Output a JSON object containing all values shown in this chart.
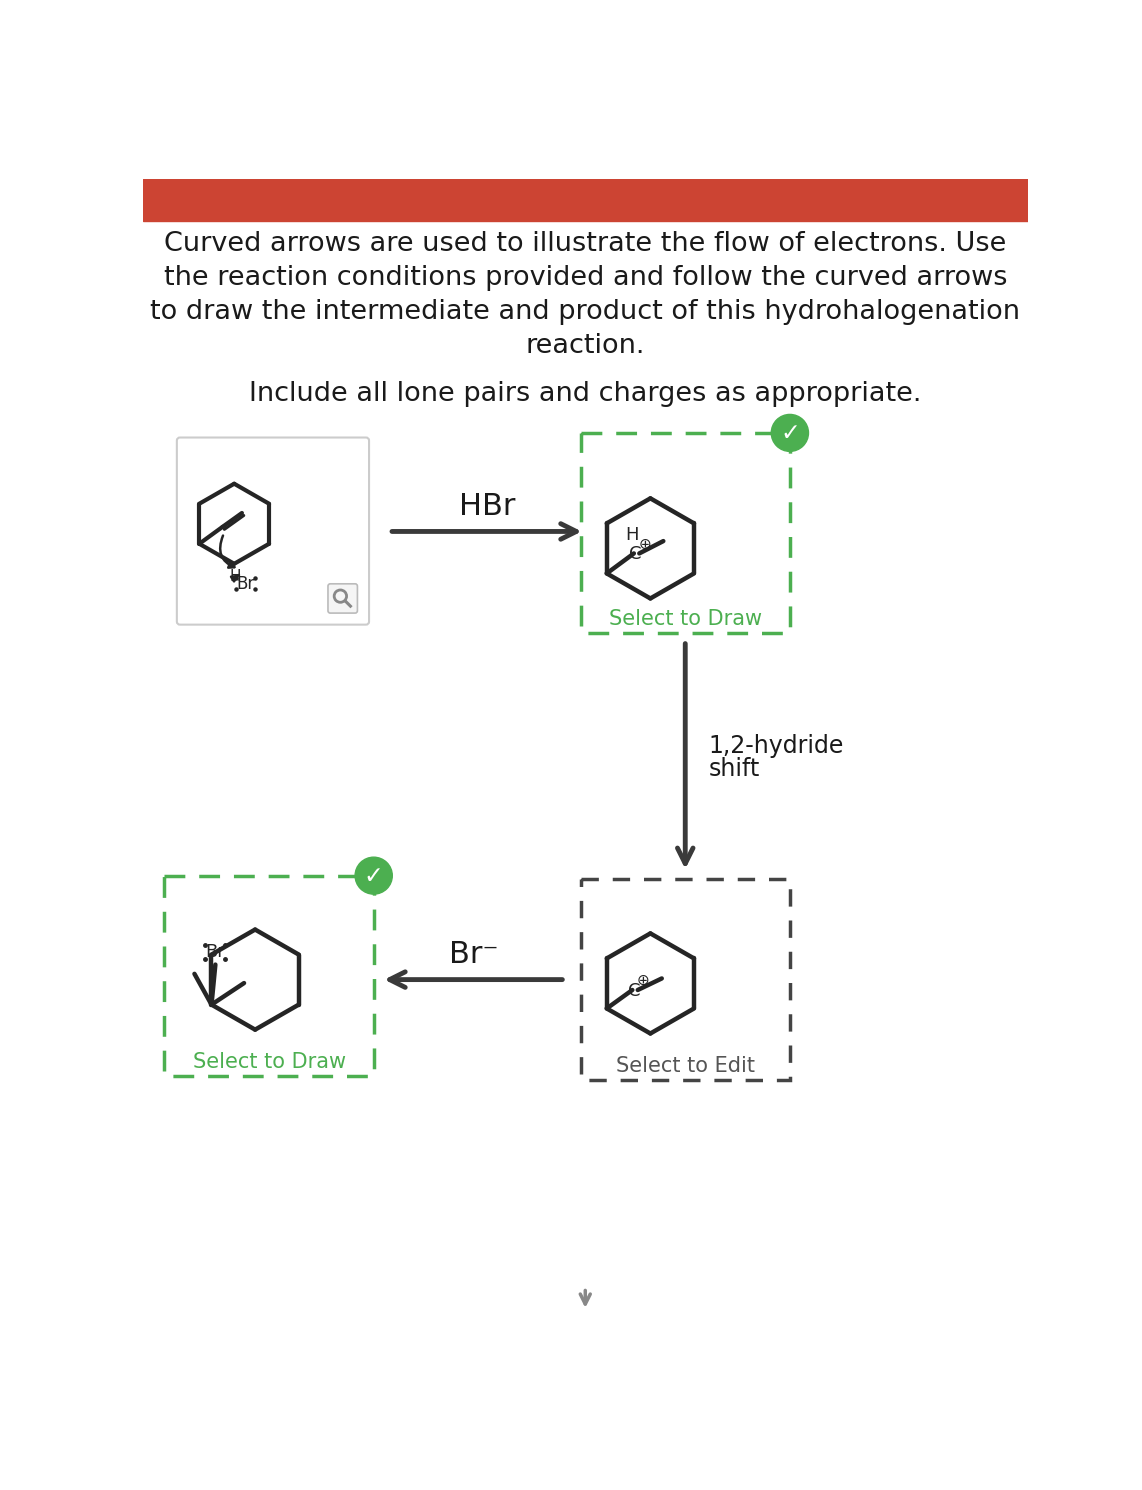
{
  "title_lines": [
    "Curved arrows are used to illustrate the flow of electrons. Use",
    "the reaction conditions provided and follow the curved arrows",
    "to draw the intermediate and product of this hydrohalogenation",
    "reaction."
  ],
  "subtitle": "Include all lone pairs and charges as appropriate.",
  "header_color": "#CC4433",
  "background_color": "#FFFFFF",
  "text_color": "#1a1a1a",
  "green_color": "#4CAF50",
  "arrow_color": "#3a3a3a",
  "box_green_dash": "#4CAF50",
  "box_black_dash": "#444444",
  "HBr_label": "HBr",
  "Br_minus_label": "Br⁻",
  "shift_label_1": "1,2-hydride",
  "shift_label_2": "shift",
  "select_draw": "Select to Draw",
  "select_edit": "Select to Edit"
}
